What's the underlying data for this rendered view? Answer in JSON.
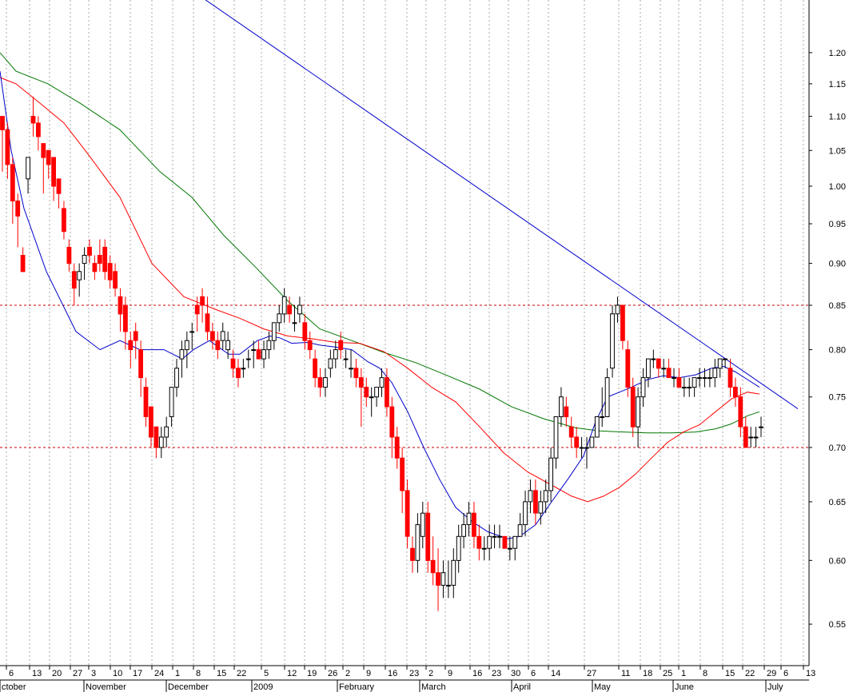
{
  "chart_data": {
    "type": "candlestick",
    "title": "",
    "scale": "log",
    "ylim": [
      0.53,
      1.26
    ],
    "y_ticks": [
      1.2,
      1.15,
      1.1,
      1.05,
      1.0,
      0.95,
      0.9,
      0.85,
      0.8,
      0.75,
      0.7,
      0.65,
      0.6,
      0.55
    ],
    "grid": "vertical dotted at weekly ticks",
    "x_week_labels": [
      "6",
      "13",
      "20",
      "27",
      "3",
      "10",
      "17",
      "24",
      "1",
      "8",
      "15",
      "22",
      "5",
      "12",
      "19",
      "26",
      "2",
      "9",
      "16",
      "23",
      "2",
      "9",
      "16",
      "23",
      "30",
      "6",
      "14",
      "27",
      "11",
      "18",
      "25",
      "1",
      "8",
      "15",
      "22",
      "29",
      "6",
      "13"
    ],
    "x_month_labels": [
      "ctober",
      "November",
      "December",
      "2009",
      "February",
      "March",
      "April",
      "May",
      "June",
      "July"
    ],
    "reference_lines": [
      0.85,
      0.7
    ],
    "trendline": {
      "from": 1.4,
      "to": 0.738
    },
    "colors": {
      "up": "#ffffff",
      "down": "#ff0000",
      "ma_short": "#0000cc",
      "ma_mid": "#ff0000",
      "ma_long": "#007700",
      "trend": "#0000cc",
      "ref": "#cc0000"
    },
    "candles": [
      [
        1.1,
        1.1,
        1.02,
        1.08
      ],
      [
        1.08,
        1.09,
        1.01,
        1.03
      ],
      [
        1.03,
        1.04,
        0.95,
        0.98
      ],
      [
        0.98,
        0.99,
        0.92,
        0.96
      ],
      [
        0.91,
        0.92,
        0.89,
        0.89
      ],
      [
        1.01,
        1.04,
        0.99,
        1.04
      ],
      [
        1.1,
        1.13,
        1.07,
        1.09
      ],
      [
        1.09,
        1.1,
        1.05,
        1.07
      ],
      [
        1.06,
        1.06,
        0.99,
        1.04
      ],
      [
        1.05,
        1.05,
        1.01,
        1.03
      ],
      [
        1.04,
        1.04,
        0.98,
        1.0
      ],
      [
        1.01,
        1.01,
        0.97,
        0.99
      ],
      [
        0.97,
        0.98,
        0.93,
        0.94
      ],
      [
        0.92,
        0.93,
        0.89,
        0.9
      ],
      [
        0.89,
        0.9,
        0.85,
        0.87
      ],
      [
        0.88,
        0.9,
        0.86,
        0.89
      ],
      [
        0.9,
        0.92,
        0.88,
        0.91
      ],
      [
        0.92,
        0.93,
        0.9,
        0.91
      ],
      [
        0.9,
        0.91,
        0.88,
        0.89
      ],
      [
        0.91,
        0.93,
        0.89,
        0.9
      ],
      [
        0.92,
        0.93,
        0.88,
        0.89
      ],
      [
        0.9,
        0.91,
        0.87,
        0.88
      ],
      [
        0.89,
        0.9,
        0.86,
        0.87
      ],
      [
        0.86,
        0.87,
        0.82,
        0.84
      ],
      [
        0.85,
        0.86,
        0.8,
        0.82
      ],
      [
        0.81,
        0.82,
        0.78,
        0.8
      ],
      [
        0.82,
        0.83,
        0.79,
        0.81
      ],
      [
        0.8,
        0.81,
        0.75,
        0.77
      ],
      [
        0.76,
        0.77,
        0.72,
        0.73
      ],
      [
        0.74,
        0.74,
        0.7,
        0.71
      ],
      [
        0.72,
        0.72,
        0.69,
        0.7
      ],
      [
        0.7,
        0.72,
        0.69,
        0.71
      ],
      [
        0.71,
        0.73,
        0.7,
        0.72
      ],
      [
        0.73,
        0.76,
        0.72,
        0.76
      ],
      [
        0.76,
        0.79,
        0.75,
        0.78
      ],
      [
        0.79,
        0.81,
        0.77,
        0.8
      ],
      [
        0.8,
        0.82,
        0.78,
        0.81
      ],
      [
        0.82,
        0.83,
        0.8,
        0.82
      ],
      [
        0.85,
        0.86,
        0.82,
        0.84
      ],
      [
        0.86,
        0.87,
        0.83,
        0.85
      ],
      [
        0.84,
        0.86,
        0.81,
        0.82
      ],
      [
        0.82,
        0.83,
        0.8,
        0.81
      ],
      [
        0.81,
        0.82,
        0.79,
        0.8
      ],
      [
        0.81,
        0.83,
        0.8,
        0.82
      ],
      [
        0.8,
        0.82,
        0.79,
        0.81
      ],
      [
        0.79,
        0.8,
        0.77,
        0.78
      ],
      [
        0.78,
        0.79,
        0.76,
        0.77
      ],
      [
        0.78,
        0.79,
        0.77,
        0.78
      ],
      [
        0.79,
        0.8,
        0.78,
        0.79
      ],
      [
        0.8,
        0.81,
        0.78,
        0.8
      ],
      [
        0.8,
        0.81,
        0.79,
        0.79
      ],
      [
        0.79,
        0.81,
        0.78,
        0.8
      ],
      [
        0.8,
        0.82,
        0.79,
        0.81
      ],
      [
        0.81,
        0.83,
        0.8,
        0.83
      ],
      [
        0.83,
        0.85,
        0.82,
        0.84
      ],
      [
        0.84,
        0.87,
        0.83,
        0.86
      ],
      [
        0.85,
        0.86,
        0.83,
        0.84
      ],
      [
        0.83,
        0.85,
        0.82,
        0.83
      ],
      [
        0.84,
        0.86,
        0.83,
        0.85
      ],
      [
        0.83,
        0.84,
        0.8,
        0.81
      ],
      [
        0.81,
        0.82,
        0.79,
        0.8
      ],
      [
        0.79,
        0.8,
        0.76,
        0.77
      ],
      [
        0.77,
        0.78,
        0.75,
        0.76
      ],
      [
        0.76,
        0.78,
        0.75,
        0.77
      ],
      [
        0.78,
        0.8,
        0.77,
        0.79
      ],
      [
        0.79,
        0.81,
        0.78,
        0.8
      ],
      [
        0.81,
        0.82,
        0.79,
        0.8
      ],
      [
        0.79,
        0.8,
        0.78,
        0.79
      ],
      [
        0.78,
        0.8,
        0.77,
        0.78
      ],
      [
        0.78,
        0.79,
        0.76,
        0.77
      ],
      [
        0.77,
        0.78,
        0.72,
        0.76
      ],
      [
        0.76,
        0.77,
        0.74,
        0.75
      ],
      [
        0.75,
        0.76,
        0.73,
        0.75
      ],
      [
        0.75,
        0.76,
        0.74,
        0.76
      ],
      [
        0.76,
        0.78,
        0.75,
        0.77
      ],
      [
        0.77,
        0.78,
        0.73,
        0.74
      ],
      [
        0.74,
        0.75,
        0.69,
        0.71
      ],
      [
        0.71,
        0.72,
        0.68,
        0.69
      ],
      [
        0.69,
        0.7,
        0.64,
        0.66
      ],
      [
        0.66,
        0.67,
        0.61,
        0.62
      ],
      [
        0.61,
        0.62,
        0.59,
        0.6
      ],
      [
        0.6,
        0.64,
        0.59,
        0.63
      ],
      [
        0.62,
        0.65,
        0.61,
        0.64
      ],
      [
        0.64,
        0.65,
        0.59,
        0.6
      ],
      [
        0.6,
        0.62,
        0.58,
        0.59
      ],
      [
        0.59,
        0.61,
        0.56,
        0.58
      ],
      [
        0.58,
        0.6,
        0.57,
        0.59
      ],
      [
        0.58,
        0.6,
        0.57,
        0.58
      ],
      [
        0.58,
        0.61,
        0.57,
        0.6
      ],
      [
        0.6,
        0.63,
        0.59,
        0.62
      ],
      [
        0.62,
        0.64,
        0.61,
        0.63
      ],
      [
        0.63,
        0.65,
        0.62,
        0.64
      ],
      [
        0.64,
        0.65,
        0.61,
        0.62
      ],
      [
        0.62,
        0.63,
        0.6,
        0.61
      ],
      [
        0.61,
        0.62,
        0.6,
        0.61
      ],
      [
        0.61,
        0.63,
        0.6,
        0.62
      ],
      [
        0.62,
        0.63,
        0.61,
        0.62
      ],
      [
        0.62,
        0.63,
        0.61,
        0.62
      ],
      [
        0.62,
        0.62,
        0.61,
        0.61
      ],
      [
        0.61,
        0.62,
        0.6,
        0.61
      ],
      [
        0.61,
        0.62,
        0.6,
        0.62
      ],
      [
        0.62,
        0.64,
        0.62,
        0.63
      ],
      [
        0.63,
        0.66,
        0.62,
        0.65
      ],
      [
        0.65,
        0.67,
        0.64,
        0.66
      ],
      [
        0.66,
        0.67,
        0.63,
        0.64
      ],
      [
        0.64,
        0.66,
        0.63,
        0.65
      ],
      [
        0.65,
        0.67,
        0.64,
        0.66
      ],
      [
        0.66,
        0.7,
        0.65,
        0.69
      ],
      [
        0.69,
        0.73,
        0.68,
        0.73
      ],
      [
        0.73,
        0.76,
        0.72,
        0.75
      ],
      [
        0.74,
        0.75,
        0.72,
        0.73
      ],
      [
        0.72,
        0.73,
        0.7,
        0.71
      ],
      [
        0.71,
        0.72,
        0.69,
        0.7
      ],
      [
        0.7,
        0.71,
        0.69,
        0.7
      ],
      [
        0.7,
        0.71,
        0.68,
        0.7
      ],
      [
        0.7,
        0.71,
        0.7,
        0.71
      ],
      [
        0.71,
        0.73,
        0.71,
        0.73
      ],
      [
        0.73,
        0.76,
        0.72,
        0.73
      ],
      [
        0.73,
        0.78,
        0.73,
        0.77
      ],
      [
        0.78,
        0.85,
        0.77,
        0.84
      ],
      [
        0.84,
        0.86,
        0.83,
        0.85
      ],
      [
        0.85,
        0.85,
        0.8,
        0.81
      ],
      [
        0.8,
        0.81,
        0.75,
        0.76
      ],
      [
        0.76,
        0.77,
        0.71,
        0.72
      ],
      [
        0.72,
        0.76,
        0.7,
        0.75
      ],
      [
        0.75,
        0.78,
        0.74,
        0.77
      ],
      [
        0.77,
        0.79,
        0.76,
        0.79
      ],
      [
        0.79,
        0.8,
        0.78,
        0.79
      ],
      [
        0.79,
        0.79,
        0.77,
        0.78
      ],
      [
        0.78,
        0.79,
        0.77,
        0.78
      ],
      [
        0.78,
        0.79,
        0.77,
        0.77
      ],
      [
        0.77,
        0.78,
        0.76,
        0.77
      ],
      [
        0.77,
        0.78,
        0.76,
        0.76
      ],
      [
        0.76,
        0.77,
        0.75,
        0.76
      ],
      [
        0.76,
        0.77,
        0.75,
        0.76
      ],
      [
        0.76,
        0.77,
        0.75,
        0.77
      ],
      [
        0.77,
        0.78,
        0.76,
        0.77
      ],
      [
        0.77,
        0.78,
        0.76,
        0.77
      ],
      [
        0.77,
        0.78,
        0.76,
        0.77
      ],
      [
        0.77,
        0.79,
        0.76,
        0.78
      ],
      [
        0.78,
        0.79,
        0.77,
        0.79
      ],
      [
        0.79,
        0.79,
        0.78,
        0.79
      ],
      [
        0.78,
        0.79,
        0.75,
        0.76
      ],
      [
        0.76,
        0.77,
        0.74,
        0.75
      ],
      [
        0.75,
        0.76,
        0.71,
        0.72
      ],
      [
        0.72,
        0.73,
        0.7,
        0.7
      ],
      [
        0.71,
        0.72,
        0.7,
        0.71
      ],
      [
        0.71,
        0.72,
        0.7,
        0.71
      ],
      [
        0.72,
        0.73,
        0.71,
        0.72
      ]
    ],
    "ma_short": [
      [
        0,
        1.17
      ],
      [
        14,
        1.05
      ],
      [
        30,
        0.97
      ],
      [
        58,
        0.89
      ],
      [
        95,
        0.82
      ],
      [
        125,
        0.8
      ],
      [
        150,
        0.81
      ],
      [
        175,
        0.8
      ],
      [
        205,
        0.8
      ],
      [
        228,
        0.79
      ],
      [
        242,
        0.8
      ],
      [
        262,
        0.81
      ],
      [
        286,
        0.795
      ],
      [
        300,
        0.795
      ],
      [
        322,
        0.81
      ],
      [
        338,
        0.815
      ],
      [
        350,
        0.813
      ],
      [
        365,
        0.807
      ],
      [
        385,
        0.808
      ],
      [
        400,
        0.805
      ],
      [
        418,
        0.803
      ],
      [
        440,
        0.8
      ],
      [
        460,
        0.787
      ],
      [
        475,
        0.78
      ],
      [
        490,
        0.765
      ],
      [
        510,
        0.735
      ],
      [
        530,
        0.7
      ],
      [
        550,
        0.67
      ],
      [
        570,
        0.645
      ],
      [
        590,
        0.633
      ],
      [
        610,
        0.624
      ],
      [
        635,
        0.618
      ],
      [
        650,
        0.62
      ],
      [
        670,
        0.63
      ],
      [
        690,
        0.65
      ],
      [
        710,
        0.67
      ],
      [
        730,
        0.692
      ],
      [
        745,
        0.725
      ],
      [
        760,
        0.75
      ],
      [
        775,
        0.755
      ],
      [
        790,
        0.76
      ],
      [
        810,
        0.768
      ],
      [
        830,
        0.772
      ],
      [
        850,
        0.77
      ],
      [
        870,
        0.773
      ],
      [
        890,
        0.78
      ],
      [
        905,
        0.782
      ],
      [
        920,
        0.776
      ],
      [
        935,
        0.768
      ],
      [
        950,
        0.76
      ]
    ],
    "ma_mid": [
      [
        0,
        1.16
      ],
      [
        20,
        1.15
      ],
      [
        50,
        1.12
      ],
      [
        80,
        1.09
      ],
      [
        110,
        1.045
      ],
      [
        150,
        0.985
      ],
      [
        190,
        0.9
      ],
      [
        230,
        0.86
      ],
      [
        270,
        0.845
      ],
      [
        300,
        0.835
      ],
      [
        330,
        0.823
      ],
      [
        360,
        0.815
      ],
      [
        390,
        0.812
      ],
      [
        420,
        0.808
      ],
      [
        450,
        0.807
      ],
      [
        480,
        0.798
      ],
      [
        510,
        0.78
      ],
      [
        540,
        0.76
      ],
      [
        570,
        0.745
      ],
      [
        600,
        0.72
      ],
      [
        630,
        0.695
      ],
      [
        660,
        0.677
      ],
      [
        690,
        0.665
      ],
      [
        715,
        0.655
      ],
      [
        735,
        0.65
      ],
      [
        755,
        0.655
      ],
      [
        775,
        0.663
      ],
      [
        795,
        0.675
      ],
      [
        815,
        0.69
      ],
      [
        835,
        0.705
      ],
      [
        855,
        0.715
      ],
      [
        875,
        0.722
      ],
      [
        895,
        0.735
      ],
      [
        915,
        0.748
      ],
      [
        935,
        0.755
      ],
      [
        950,
        0.753
      ]
    ],
    "ma_long": [
      [
        0,
        1.2
      ],
      [
        20,
        1.17
      ],
      [
        60,
        1.15
      ],
      [
        100,
        1.12
      ],
      [
        150,
        1.08
      ],
      [
        200,
        1.02
      ],
      [
        240,
        0.985
      ],
      [
        280,
        0.935
      ],
      [
        320,
        0.895
      ],
      [
        360,
        0.855
      ],
      [
        400,
        0.823
      ],
      [
        440,
        0.81
      ],
      [
        480,
        0.797
      ],
      [
        520,
        0.786
      ],
      [
        560,
        0.772
      ],
      [
        600,
        0.758
      ],
      [
        640,
        0.74
      ],
      [
        680,
        0.728
      ],
      [
        720,
        0.719
      ],
      [
        750,
        0.716
      ],
      [
        780,
        0.715
      ],
      [
        810,
        0.714
      ],
      [
        840,
        0.714
      ],
      [
        870,
        0.715
      ],
      [
        895,
        0.718
      ],
      [
        915,
        0.723
      ],
      [
        935,
        0.731
      ],
      [
        950,
        0.735
      ]
    ]
  }
}
